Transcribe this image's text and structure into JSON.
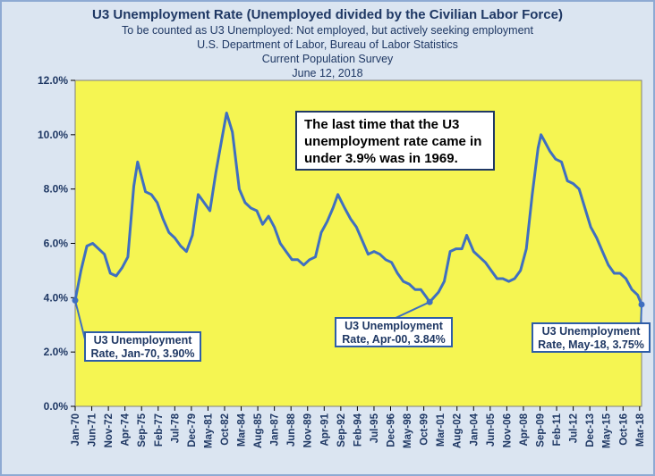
{
  "title": "U3 Unemployment  Rate (Unemployed  divided by the Civilian Labor Force)",
  "subtitles": [
    "To be counted  as U3 Unemployed:  Not employed, but actively seeking employment",
    "U.S. Department of Labor, Bureau of Labor Statistics",
    "Current Population Survey",
    "June 12, 2018"
  ],
  "note": "The last time that the U3 unemployment  rate came in under 3.9%  was in 1969.",
  "annotations": [
    {
      "line1": "U3 Unemployment",
      "line2": "Rate, Jan-70, 3.90%",
      "x": "Jan-70",
      "y": 3.9
    },
    {
      "line1": "U3 Unemployment",
      "line2": "Rate, Apr-00, 3.84%",
      "x": "Apr-00",
      "y": 3.84
    },
    {
      "line1": "U3 Unemployment",
      "line2": "Rate, May-18, 3.75%",
      "x": "May-18",
      "y": 3.75
    }
  ],
  "colors": {
    "plot_bg": "#f5f552",
    "line": "#3f6fc0",
    "frame_bg": "#dbe5f1",
    "title": "#1f3864"
  },
  "chart_data": {
    "type": "line",
    "title": "U3 Unemployment  Rate (Unemployed  divided by the Civilian Labor Force)",
    "ylim": [
      0,
      12
    ],
    "y_ticks": [
      "0.0%",
      "2.0%",
      "4.0%",
      "6.0%",
      "8.0%",
      "10.0%",
      "12.0%"
    ],
    "x_start": "Jan-70",
    "x_end": "May-18",
    "x_tick_labels": [
      "Jan-70",
      "Jun-71",
      "Nov-72",
      "Apr-74",
      "Sep-75",
      "Feb-77",
      "Jul-78",
      "Dec-79",
      "May-81",
      "Oct-82",
      "Mar-84",
      "Aug-85",
      "Jan-87",
      "Jun-88",
      "Nov-89",
      "Apr-91",
      "Sep-92",
      "Feb-94",
      "Jul-95",
      "Dec-96",
      "May-98",
      "Oct-99",
      "Mar-01",
      "Aug-02",
      "Jan-04",
      "Jun-05",
      "Nov-06",
      "Apr-08",
      "Sep-09",
      "Feb-11",
      "Jul-12",
      "Dec-13",
      "May-15",
      "Oct-16",
      "Mar-18"
    ],
    "grid": false,
    "series": [
      {
        "points": [
          [
            "Jan-70",
            3.9
          ],
          [
            "Jul-70",
            5.0
          ],
          [
            "Jan-71",
            5.9
          ],
          [
            "Jul-71",
            6.0
          ],
          [
            "Jan-72",
            5.8
          ],
          [
            "Jul-72",
            5.6
          ],
          [
            "Jan-73",
            4.9
          ],
          [
            "Jul-73",
            4.8
          ],
          [
            "Jan-74",
            5.1
          ],
          [
            "Jul-74",
            5.5
          ],
          [
            "Jan-75",
            8.1
          ],
          [
            "May-75",
            9.0
          ],
          [
            "Jan-76",
            7.9
          ],
          [
            "Jul-76",
            7.8
          ],
          [
            "Jan-77",
            7.5
          ],
          [
            "Jul-77",
            6.9
          ],
          [
            "Jan-78",
            6.4
          ],
          [
            "Jul-78",
            6.2
          ],
          [
            "Jan-79",
            5.9
          ],
          [
            "Jul-79",
            5.7
          ],
          [
            "Jan-80",
            6.3
          ],
          [
            "Jul-80",
            7.8
          ],
          [
            "Jan-81",
            7.5
          ],
          [
            "Jul-81",
            7.2
          ],
          [
            "Jan-82",
            8.6
          ],
          [
            "Jul-82",
            9.8
          ],
          [
            "Dec-82",
            10.8
          ],
          [
            "Jun-83",
            10.1
          ],
          [
            "Jan-84",
            8.0
          ],
          [
            "Jul-84",
            7.5
          ],
          [
            "Jan-85",
            7.3
          ],
          [
            "Jul-85",
            7.2
          ],
          [
            "Jan-86",
            6.7
          ],
          [
            "Jul-86",
            7.0
          ],
          [
            "Jan-87",
            6.6
          ],
          [
            "Jul-87",
            6.0
          ],
          [
            "Jan-88",
            5.7
          ],
          [
            "Jul-88",
            5.4
          ],
          [
            "Jan-89",
            5.4
          ],
          [
            "Jul-89",
            5.2
          ],
          [
            "Jan-90",
            5.4
          ],
          [
            "Jul-90",
            5.5
          ],
          [
            "Jan-91",
            6.4
          ],
          [
            "Jul-91",
            6.8
          ],
          [
            "Jan-92",
            7.3
          ],
          [
            "Jun-92",
            7.8
          ],
          [
            "Jan-93",
            7.3
          ],
          [
            "Jul-93",
            6.9
          ],
          [
            "Jan-94",
            6.6
          ],
          [
            "Jul-94",
            6.1
          ],
          [
            "Jan-95",
            5.6
          ],
          [
            "Jul-95",
            5.7
          ],
          [
            "Jan-96",
            5.6
          ],
          [
            "Jul-96",
            5.4
          ],
          [
            "Jan-97",
            5.3
          ],
          [
            "Jul-97",
            4.9
          ],
          [
            "Jan-98",
            4.6
          ],
          [
            "Jul-98",
            4.5
          ],
          [
            "Jan-99",
            4.3
          ],
          [
            "Jul-99",
            4.3
          ],
          [
            "Jan-00",
            4.0
          ],
          [
            "Apr-00",
            3.84
          ],
          [
            "Jan-01",
            4.2
          ],
          [
            "Jul-01",
            4.6
          ],
          [
            "Jan-02",
            5.7
          ],
          [
            "Jul-02",
            5.8
          ],
          [
            "Jan-03",
            5.8
          ],
          [
            "Jun-03",
            6.3
          ],
          [
            "Jan-04",
            5.7
          ],
          [
            "Jul-04",
            5.5
          ],
          [
            "Jan-05",
            5.3
          ],
          [
            "Jul-05",
            5.0
          ],
          [
            "Jan-06",
            4.7
          ],
          [
            "Jul-06",
            4.7
          ],
          [
            "Jan-07",
            4.6
          ],
          [
            "Jul-07",
            4.7
          ],
          [
            "Jan-08",
            5.0
          ],
          [
            "Jul-08",
            5.8
          ],
          [
            "Jan-09",
            7.8
          ],
          [
            "Jul-09",
            9.5
          ],
          [
            "Oct-09",
            10.0
          ],
          [
            "Jan-10",
            9.8
          ],
          [
            "Jul-10",
            9.4
          ],
          [
            "Jan-11",
            9.1
          ],
          [
            "Jul-11",
            9.0
          ],
          [
            "Jan-12",
            8.3
          ],
          [
            "Jul-12",
            8.2
          ],
          [
            "Jan-13",
            8.0
          ],
          [
            "Jul-13",
            7.3
          ],
          [
            "Jan-14",
            6.6
          ],
          [
            "Jul-14",
            6.2
          ],
          [
            "Jan-15",
            5.7
          ],
          [
            "Jul-15",
            5.2
          ],
          [
            "Jan-16",
            4.9
          ],
          [
            "Jul-16",
            4.9
          ],
          [
            "Jan-17",
            4.7
          ],
          [
            "Jul-17",
            4.3
          ],
          [
            "Jan-18",
            4.1
          ],
          [
            "May-18",
            3.75
          ]
        ]
      }
    ]
  }
}
